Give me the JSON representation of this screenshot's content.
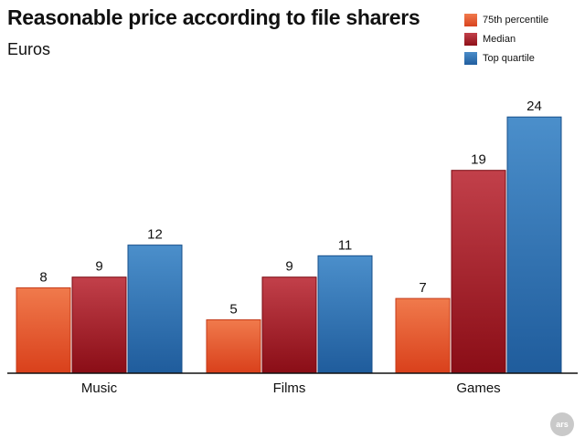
{
  "title": "Reasonable price according to file sharers",
  "subtitle": "Euros",
  "colors": {
    "75th percentile": "#e65a2c",
    "Median": "#a8202a",
    "Top quartile": "#2f6fae"
  },
  "chart_data": {
    "type": "bar",
    "title": "Reasonable price according to file sharers",
    "subtitle": "Euros",
    "categories": [
      "Music",
      "Films",
      "Games"
    ],
    "series": [
      {
        "name": "75th percentile",
        "values": [
          8,
          5,
          7
        ]
      },
      {
        "name": "Median",
        "values": [
          9,
          9,
          19
        ]
      },
      {
        "name": "Top quartile",
        "values": [
          12,
          11,
          24
        ]
      }
    ],
    "ylim": [
      0,
      25
    ],
    "grid": false,
    "legend": "top-right",
    "data_labels": true
  },
  "legend": [
    {
      "label": "75th percentile"
    },
    {
      "label": "Median"
    },
    {
      "label": "Top quartile"
    }
  ],
  "logo": {
    "text": "ars"
  }
}
